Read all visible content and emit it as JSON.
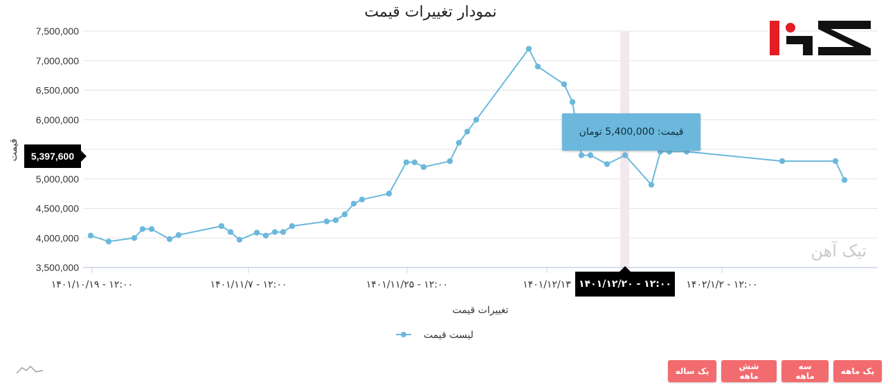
{
  "chart_data": {
    "type": "line",
    "title": "نمودار تغییرات قیمت",
    "xlabel": "تغییرات قیمت",
    "ylabel": "قیمت",
    "ylim": [
      3500000,
      7500000
    ],
    "y_ticks": [
      "7,500,000",
      "7,000,000",
      "6,500,000",
      "6,000,000",
      "5,500,000",
      "5,000,000",
      "4,500,000",
      "4,000,000",
      "3,500,000"
    ],
    "x_ticks": [
      "۱۴۰۱/۱۰/۱۹ - ۱۲:۰۰",
      "۱۴۰۱/۱۱/۷ - ۱۲:۰۰",
      "۱۴۰۱/۱۱/۲۵ - ۱۲:۰۰",
      "۱۴۰۱/۱۲/۱۳",
      "۱۴۰۲/۱/۲ - ۱۲:۰۰"
    ],
    "grid": true,
    "legend_position": "bottom",
    "color": "#6cb8dc",
    "series": [
      {
        "name": "لیست قیمت",
        "values": [
          4040000,
          3940000,
          4000000,
          4150000,
          4150000,
          3980000,
          4050000,
          4200000,
          4100000,
          3970000,
          4090000,
          4040000,
          4100000,
          4100000,
          4200000,
          4280000,
          4300000,
          4400000,
          4580000,
          4650000,
          4750000,
          5280000,
          5280000,
          5200000,
          5300000,
          5610000,
          5800000,
          6000000,
          7200000,
          6900000,
          6600000,
          6300000,
          5400000,
          5400000,
          5250000,
          5400000,
          4900000,
          5460000,
          5460000,
          5460000,
          5300000,
          5300000,
          4980000
        ]
      }
    ],
    "tooltip_text": "قیمت: 5,400,000 تومان",
    "crosshair_y_value": "5,397,600",
    "crosshair_x_value": "۱۴۰۱/۱۲/۲۰ - ۱۲:۰۰"
  },
  "watermark": "تیک آهن",
  "range_buttons": [
    "یک ساله",
    "شش ماهه",
    "سه ماهه",
    "یک ماهه"
  ]
}
